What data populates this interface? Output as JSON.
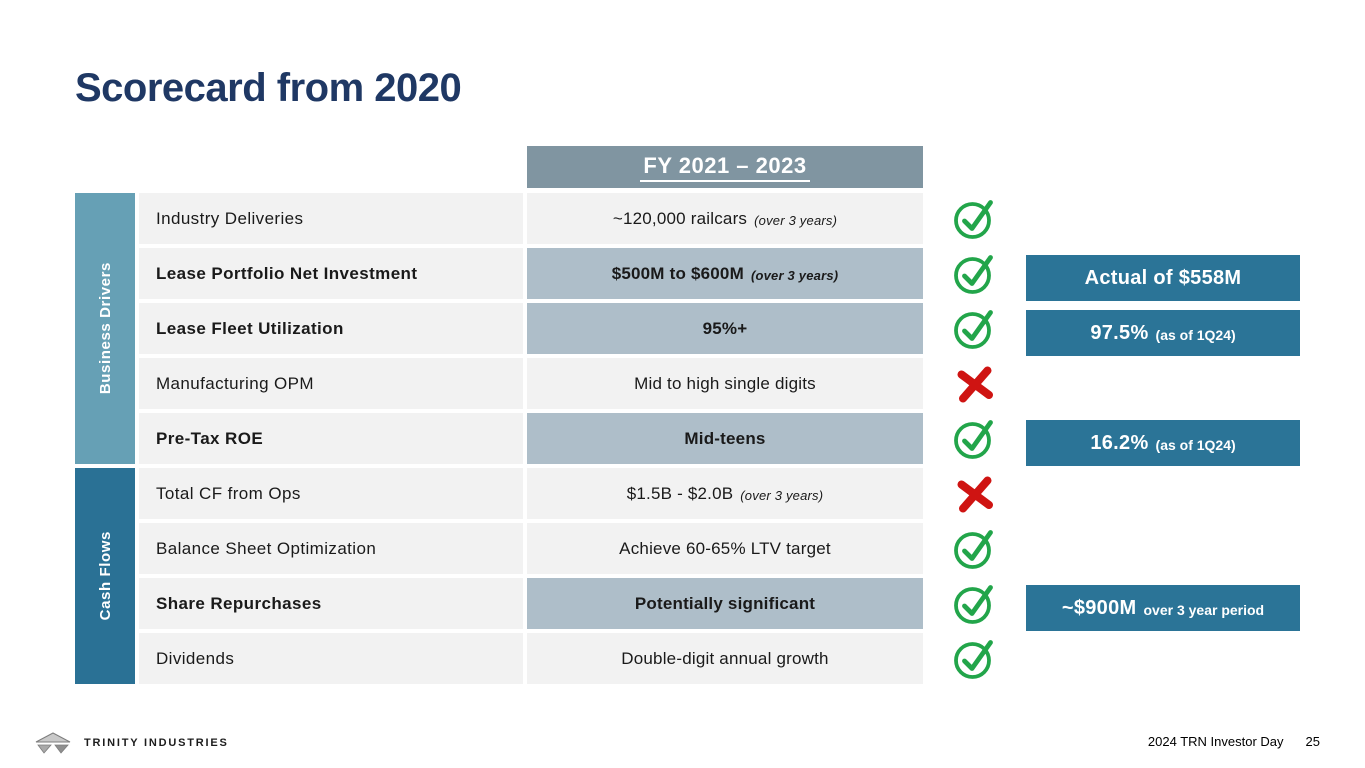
{
  "slide": {
    "title": "Scorecard from 2020",
    "footer": {
      "brand": "TRINITY INDUSTRIES",
      "caption": "2024 TRN Investor Day",
      "page_number": "25"
    }
  },
  "colors": {
    "title_navy": "#1f3864",
    "header_bg": "#8095a1",
    "row_bg": "#f2f2f2",
    "highlight_bg": "#aebec9",
    "group_business_drivers": "#66a0b5",
    "group_cash_flows": "#2a7195",
    "callout_bg": "#2b7497",
    "check_green": "#22a54a",
    "x_red": "#cf1412"
  },
  "table": {
    "header": "FY 2021 – 2023",
    "groups": [
      {
        "label": "Business Drivers",
        "row_span": 5,
        "color_key": "group_business_drivers"
      },
      {
        "label": "Cash Flows",
        "row_span": 4,
        "color_key": "group_cash_flows"
      }
    ],
    "rows": [
      {
        "label": "Industry Deliveries",
        "value": "~120,000 railcars",
        "value_note": "(over 3 years)",
        "emphasis": false,
        "status": "pass",
        "callout": null
      },
      {
        "label": "Lease Portfolio Net Investment",
        "value": "$500M to $600M",
        "value_note": "(over 3 years)",
        "emphasis": true,
        "status": "pass",
        "callout": {
          "main": "Actual of $558M",
          "note": ""
        }
      },
      {
        "label": "Lease Fleet Utilization",
        "value": "95%+",
        "value_note": "",
        "emphasis": true,
        "status": "pass",
        "callout": {
          "main": "97.5%",
          "note": "(as of 1Q24)"
        }
      },
      {
        "label": "Manufacturing OPM",
        "value": "Mid to high single digits",
        "value_note": "",
        "emphasis": false,
        "status": "fail",
        "callout": null
      },
      {
        "label": "Pre-Tax ROE",
        "value": "Mid-teens",
        "value_note": "",
        "emphasis": true,
        "status": "pass",
        "callout": {
          "main": "16.2%",
          "note": "(as of 1Q24)"
        }
      },
      {
        "label": "Total CF from Ops",
        "value": "$1.5B - $2.0B",
        "value_note": "(over 3 years)",
        "emphasis": false,
        "status": "fail",
        "callout": null
      },
      {
        "label": "Balance Sheet Optimization",
        "value": "Achieve 60-65% LTV target",
        "value_note": "",
        "emphasis": false,
        "status": "pass",
        "callout": null
      },
      {
        "label": "Share Repurchases",
        "value": "Potentially significant",
        "value_note": "",
        "emphasis": true,
        "status": "pass",
        "callout": {
          "main": "~$900M",
          "note": "over 3 year period"
        }
      },
      {
        "label": "Dividends",
        "value": "Double-digit annual growth",
        "value_note": "",
        "emphasis": false,
        "status": "pass",
        "callout": null
      }
    ]
  }
}
